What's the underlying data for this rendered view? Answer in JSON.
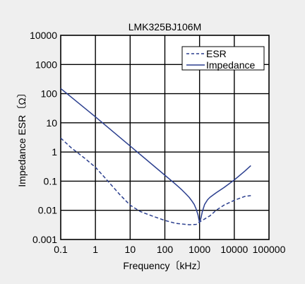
{
  "chart_data": {
    "type": "line",
    "title": "LMK325BJ106M",
    "xlabel": "Frequency〔kHz〕",
    "ylabel": "Impedance ESR〔Ω〕",
    "x_scale": "log",
    "y_scale": "log",
    "xlim": [
      0.1,
      100000
    ],
    "ylim": [
      0.001,
      10000
    ],
    "x_ticks": [
      "0.1",
      "1",
      "10",
      "100",
      "1000",
      "10000",
      "100000"
    ],
    "y_ticks": [
      "0.001",
      "0.01",
      "0.1",
      "1",
      "10",
      "100",
      "1000",
      "10000"
    ],
    "grid": true,
    "legend_position": "top-right",
    "series": [
      {
        "name": "ESR",
        "style": "dashed",
        "color": "#2b3f8f",
        "x": [
          0.1,
          0.2,
          0.5,
          1,
          2,
          5,
          10,
          20,
          50,
          100,
          200,
          500,
          800,
          1000,
          1300,
          2000,
          3000,
          5000,
          10000,
          20000,
          30000
        ],
        "y": [
          3,
          1.4,
          0.6,
          0.3,
          0.12,
          0.035,
          0.015,
          0.009,
          0.006,
          0.0045,
          0.0036,
          0.0032,
          0.0033,
          0.004,
          0.0048,
          0.0065,
          0.01,
          0.015,
          0.022,
          0.03,
          0.032
        ]
      },
      {
        "name": "Impedance",
        "style": "solid",
        "color": "#2b3f8f",
        "x": [
          0.1,
          1,
          10,
          100,
          200,
          300,
          400,
          500,
          600,
          700,
          800,
          900,
          1000,
          1100,
          1200,
          1400,
          1700,
          2000,
          3000,
          5000,
          10000,
          20000,
          30000
        ],
        "y": [
          150,
          16,
          1.6,
          0.16,
          0.08,
          0.052,
          0.037,
          0.028,
          0.021,
          0.016,
          0.011,
          0.007,
          0.0038,
          0.0055,
          0.009,
          0.016,
          0.023,
          0.028,
          0.04,
          0.06,
          0.11,
          0.22,
          0.34
        ]
      }
    ]
  }
}
